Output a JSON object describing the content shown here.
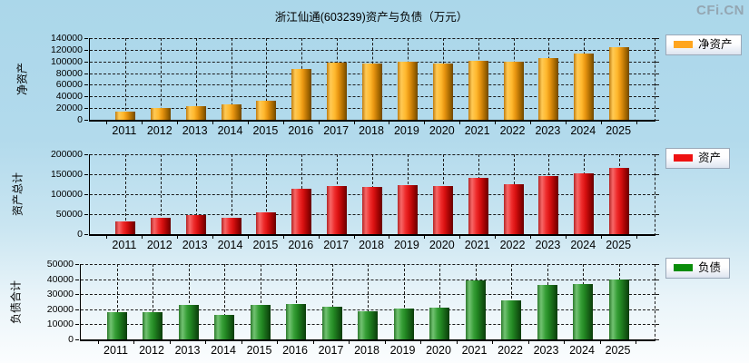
{
  "page": {
    "title": "浙江仙通(603239)资产与负债（万元）",
    "watermark": "CFi.CN"
  },
  "chart_data": [
    {
      "type": "bar",
      "name": "net-assets",
      "legend": "净资产",
      "ylabel": "净资产",
      "color": "#ffa51e",
      "categories": [
        "2011",
        "2012",
        "2013",
        "2014",
        "2015",
        "2016",
        "2017",
        "2018",
        "2019",
        "2020",
        "2021",
        "2022",
        "2023",
        "2024",
        "2025"
      ],
      "values": [
        13500,
        21000,
        23000,
        26000,
        33000,
        87000,
        98000,
        96500,
        99000,
        96500,
        100500,
        99500,
        106500,
        114000,
        124000
      ],
      "ylim": [
        0,
        140000
      ],
      "yticks": [
        0,
        20000,
        40000,
        60000,
        80000,
        100000,
        120000,
        140000
      ],
      "grid": true,
      "legend_position": "right"
    },
    {
      "type": "bar",
      "name": "total-assets",
      "legend": "资产",
      "ylabel": "资产总计",
      "color": "#ee1111",
      "categories": [
        "2011",
        "2012",
        "2013",
        "2014",
        "2015",
        "2016",
        "2017",
        "2018",
        "2019",
        "2020",
        "2021",
        "2022",
        "2023",
        "2024",
        "2025"
      ],
      "values": [
        31000,
        40000,
        47000,
        42000,
        55000,
        113000,
        121000,
        117500,
        122000,
        119500,
        141000,
        126000,
        145000,
        152000,
        165000
      ],
      "ylim": [
        0,
        200000
      ],
      "yticks": [
        0,
        50000,
        100000,
        150000,
        200000
      ],
      "grid": true,
      "legend_position": "right"
    },
    {
      "type": "bar",
      "name": "total-liabilities",
      "legend": "负债",
      "ylabel": "负债合计",
      "color": "#0a8c0a",
      "categories": [
        "2011",
        "2012",
        "2013",
        "2014",
        "2015",
        "2016",
        "2017",
        "2018",
        "2019",
        "2020",
        "2021",
        "2022",
        "2023",
        "2024",
        "2025"
      ],
      "values": [
        17800,
        17800,
        22700,
        16200,
        22700,
        23400,
        21700,
        18600,
        20600,
        21100,
        39300,
        25700,
        36000,
        36700,
        40000
      ],
      "ylim": [
        0,
        50000
      ],
      "yticks": [
        0,
        10000,
        20000,
        30000,
        40000,
        50000
      ],
      "grid": true,
      "legend_position": "right"
    }
  ]
}
